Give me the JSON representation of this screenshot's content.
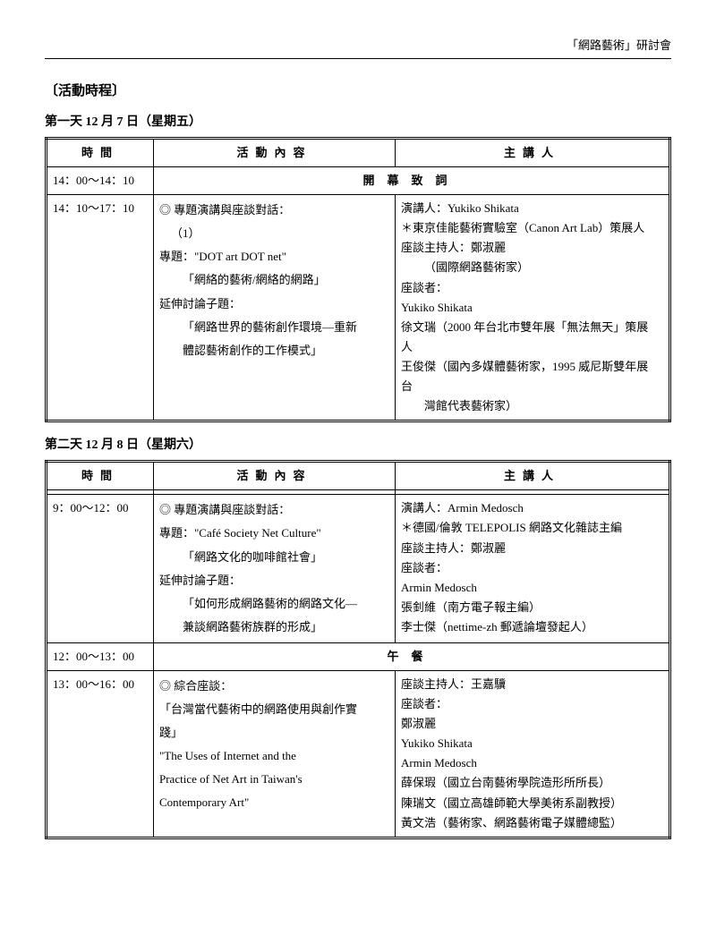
{
  "header": {
    "right": "「網路藝術」研討會"
  },
  "section_title": "〔活動時程〕",
  "headers": {
    "time": "時間",
    "content": "活動內容",
    "speaker": "主講人"
  },
  "day1": {
    "title": "第一天 12 月 7 日（星期五）",
    "row1": {
      "time": "14：00～14：10",
      "merged": "開幕致詞"
    },
    "row2": {
      "time": "14：10～17：10",
      "content": {
        "l1": "◎ 專題演講與座談對話：",
        "l2": "（1）",
        "l3": "專題：\"DOT art DOT net\"",
        "l4": "「網絡的藝術/網絡的網路」",
        "l5": "延伸討論子題：",
        "l6": "「網路世界的藝術創作環境—重新",
        "l7": "體認藝術創作的工作模式」"
      },
      "speaker": {
        "l1": "演講人：Yukiko Shikata",
        "l2": "＊東京佳能藝術實驗室（Canon Art Lab）策展人",
        "l3": "座談主持人：鄭淑麗",
        "l4": "（國際網路藝術家）",
        "l5": "座談者：",
        "l6": "Yukiko Shikata",
        "l7": "徐文瑞（2000 年台北市雙年展「無法無天」策展",
        "l8": "人",
        "l9": "王俊傑（國內多媒體藝術家，1995 威尼斯雙年展",
        "l10": "台",
        "l11": "灣館代表藝術家）"
      }
    }
  },
  "day2": {
    "title": "第二天 12 月 8 日（星期六）",
    "row1": {
      "time": "9：00～12：00",
      "content": {
        "l1": "◎ 專題演講與座談對話：",
        "l2": "專題：\"Café Society Net Culture\"",
        "l3": "「網路文化的咖啡館社會」",
        "l4": "延伸討論子題：",
        "l5": "「如何形成網路藝術的網路文化—",
        "l6": "兼談網路藝術族群的形成」"
      },
      "speaker": {
        "l1": "演講人：Armin Medosch",
        "l2": "＊德國/倫敦 TELEPOLIS 網路文化雜誌主編",
        "l3": "座談主持人：鄭淑麗",
        "l4": "座談者：",
        "l5": "Armin Medosch",
        "l6": "張釗維（南方電子報主編）",
        "l7": "李士傑（nettime-zh 郵遞論壇發起人）"
      }
    },
    "row2": {
      "time": "12：00～13：00",
      "merged": "午餐"
    },
    "row3": {
      "time": "13：00～16：00",
      "content": {
        "l1": "◎ 綜合座談：",
        "l2": "「台灣當代藝術中的網路使用與創作實",
        "l3": "踐」",
        "l4": "\"The Uses of Internet and the",
        "l5": "Practice of Net Art in Taiwan's",
        "l6": "Contemporary Art\""
      },
      "speaker": {
        "l1": "座談主持人：王嘉驥",
        "l2": "座談者：",
        "l3": "鄭淑麗",
        "l4": "Yukiko Shikata",
        "l5": "Armin Medosch",
        "l6": "薛保瑕（國立台南藝術學院造形所所長）",
        "l7": "陳瑞文（國立高雄師範大學美術系副教授）",
        "l8": "黃文浩（藝術家、網路藝術電子媒體總監）"
      }
    }
  }
}
